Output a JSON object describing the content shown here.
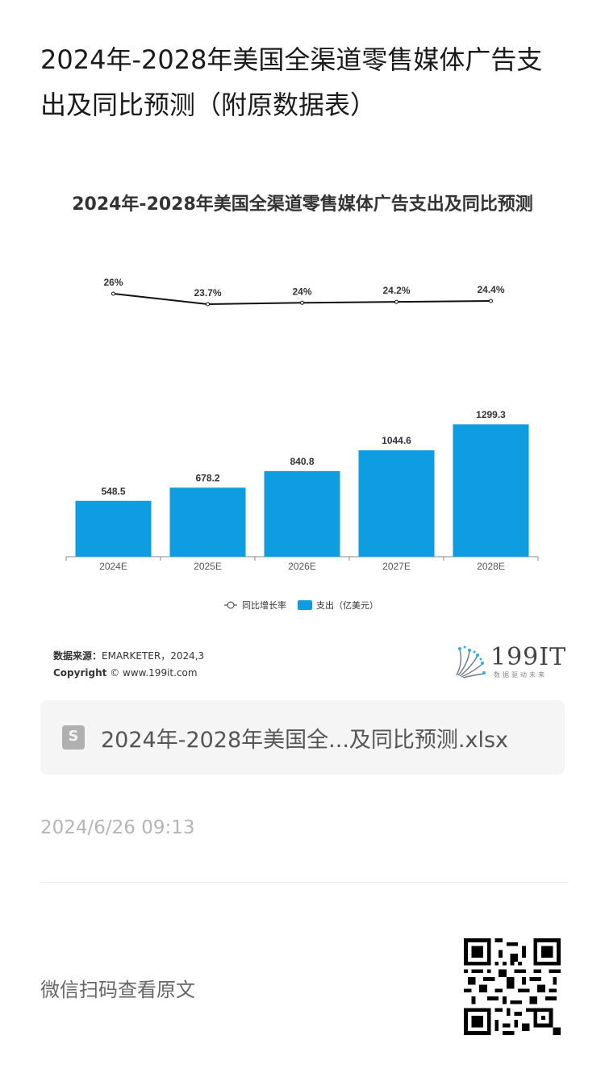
{
  "article": {
    "title": "2024年-2028年美国全渠道零售媒体广告支出及同比预测（附原数据表）"
  },
  "chart_data": {
    "type": "bar",
    "title": "2024年-2028年美国全渠道零售媒体广告支出及同比预测",
    "categories": [
      "2024E",
      "2025E",
      "2026E",
      "2027E",
      "2028E"
    ],
    "series": [
      {
        "name": "支出（亿美元）",
        "type": "bar",
        "color": "#0f9de1",
        "values": [
          548.5,
          678.2,
          840.8,
          1044.6,
          1299.3
        ],
        "labels": [
          "548.5",
          "678.2",
          "840.8",
          "1044.6",
          "1299.3"
        ]
      },
      {
        "name": "同比增长率",
        "type": "line",
        "color": "#111111",
        "values": [
          26,
          23.7,
          24,
          24.2,
          24.4
        ],
        "labels": [
          "26%",
          "23.7%",
          "24%",
          "24.2%",
          "24.4%"
        ]
      }
    ],
    "legend_position": "bottom",
    "grid": false
  },
  "source": {
    "label": "数据来源：",
    "value": "EMARKETER，2024,3",
    "copyright_label": "Copyright",
    "copyright_value": "© www.199it.com"
  },
  "logo": {
    "text": "199IT",
    "tagline": "数据驱动未来"
  },
  "attachment": {
    "icon": "S",
    "filename": "2024年-2028年美国全...及同比预测.xlsx"
  },
  "timestamp": "2024/6/26 09:13",
  "footer": {
    "wechat_prompt": "微信扫码查看原文"
  }
}
